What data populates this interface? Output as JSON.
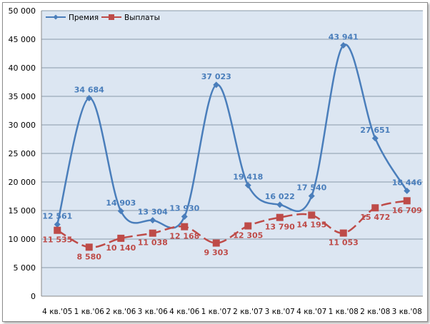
{
  "chart_data": {
    "type": "line",
    "title": "",
    "xlabel": "",
    "ylabel": "",
    "ylim": [
      0,
      50000
    ],
    "yticks": [
      0,
      5000,
      10000,
      15000,
      20000,
      25000,
      30000,
      35000,
      40000,
      45000,
      50000
    ],
    "ytick_labels": [
      "0",
      "5 000",
      "10 000",
      "15 000",
      "20 000",
      "25 000",
      "30 000",
      "35 000",
      "40 000",
      "45 000",
      "50 000"
    ],
    "grid": true,
    "legend": "top-left",
    "categories": [
      "4 кв.'05",
      "1 кв.'06",
      "2 кв.'06",
      "3 кв.'06",
      "4 кв.'06",
      "1 кв.'07",
      "2 кв.'07",
      "3 кв.'07",
      "4 кв.'07",
      "1 кв.'08",
      "2 кв.'08",
      "3 кв.'08"
    ],
    "series": [
      {
        "name": "Премия",
        "color": "#4a7ebb",
        "marker": "diamond",
        "dash": "solid",
        "values": [
          12561,
          34684,
          14903,
          13304,
          13930,
          37023,
          19418,
          16022,
          17540,
          43941,
          27651,
          18446
        ],
        "labels": [
          "12 561",
          "34 684",
          "14 903",
          "13 304",
          "13 930",
          "37 023",
          "19 418",
          "16 022",
          "17 540",
          "43 941",
          "27 651",
          "18 446"
        ]
      },
      {
        "name": "Выплаты",
        "color": "#be4b48",
        "marker": "square",
        "dash": "dashed",
        "values": [
          11535,
          8580,
          10140,
          11038,
          12168,
          9303,
          12305,
          13790,
          14195,
          11053,
          15472,
          16709
        ],
        "labels": [
          "11 535",
          "8 580",
          "10 140",
          "11 038",
          "12 168",
          "9 303",
          "12 305",
          "13 790",
          "14 195",
          "11 053",
          "15 472",
          "16 709"
        ]
      }
    ]
  }
}
